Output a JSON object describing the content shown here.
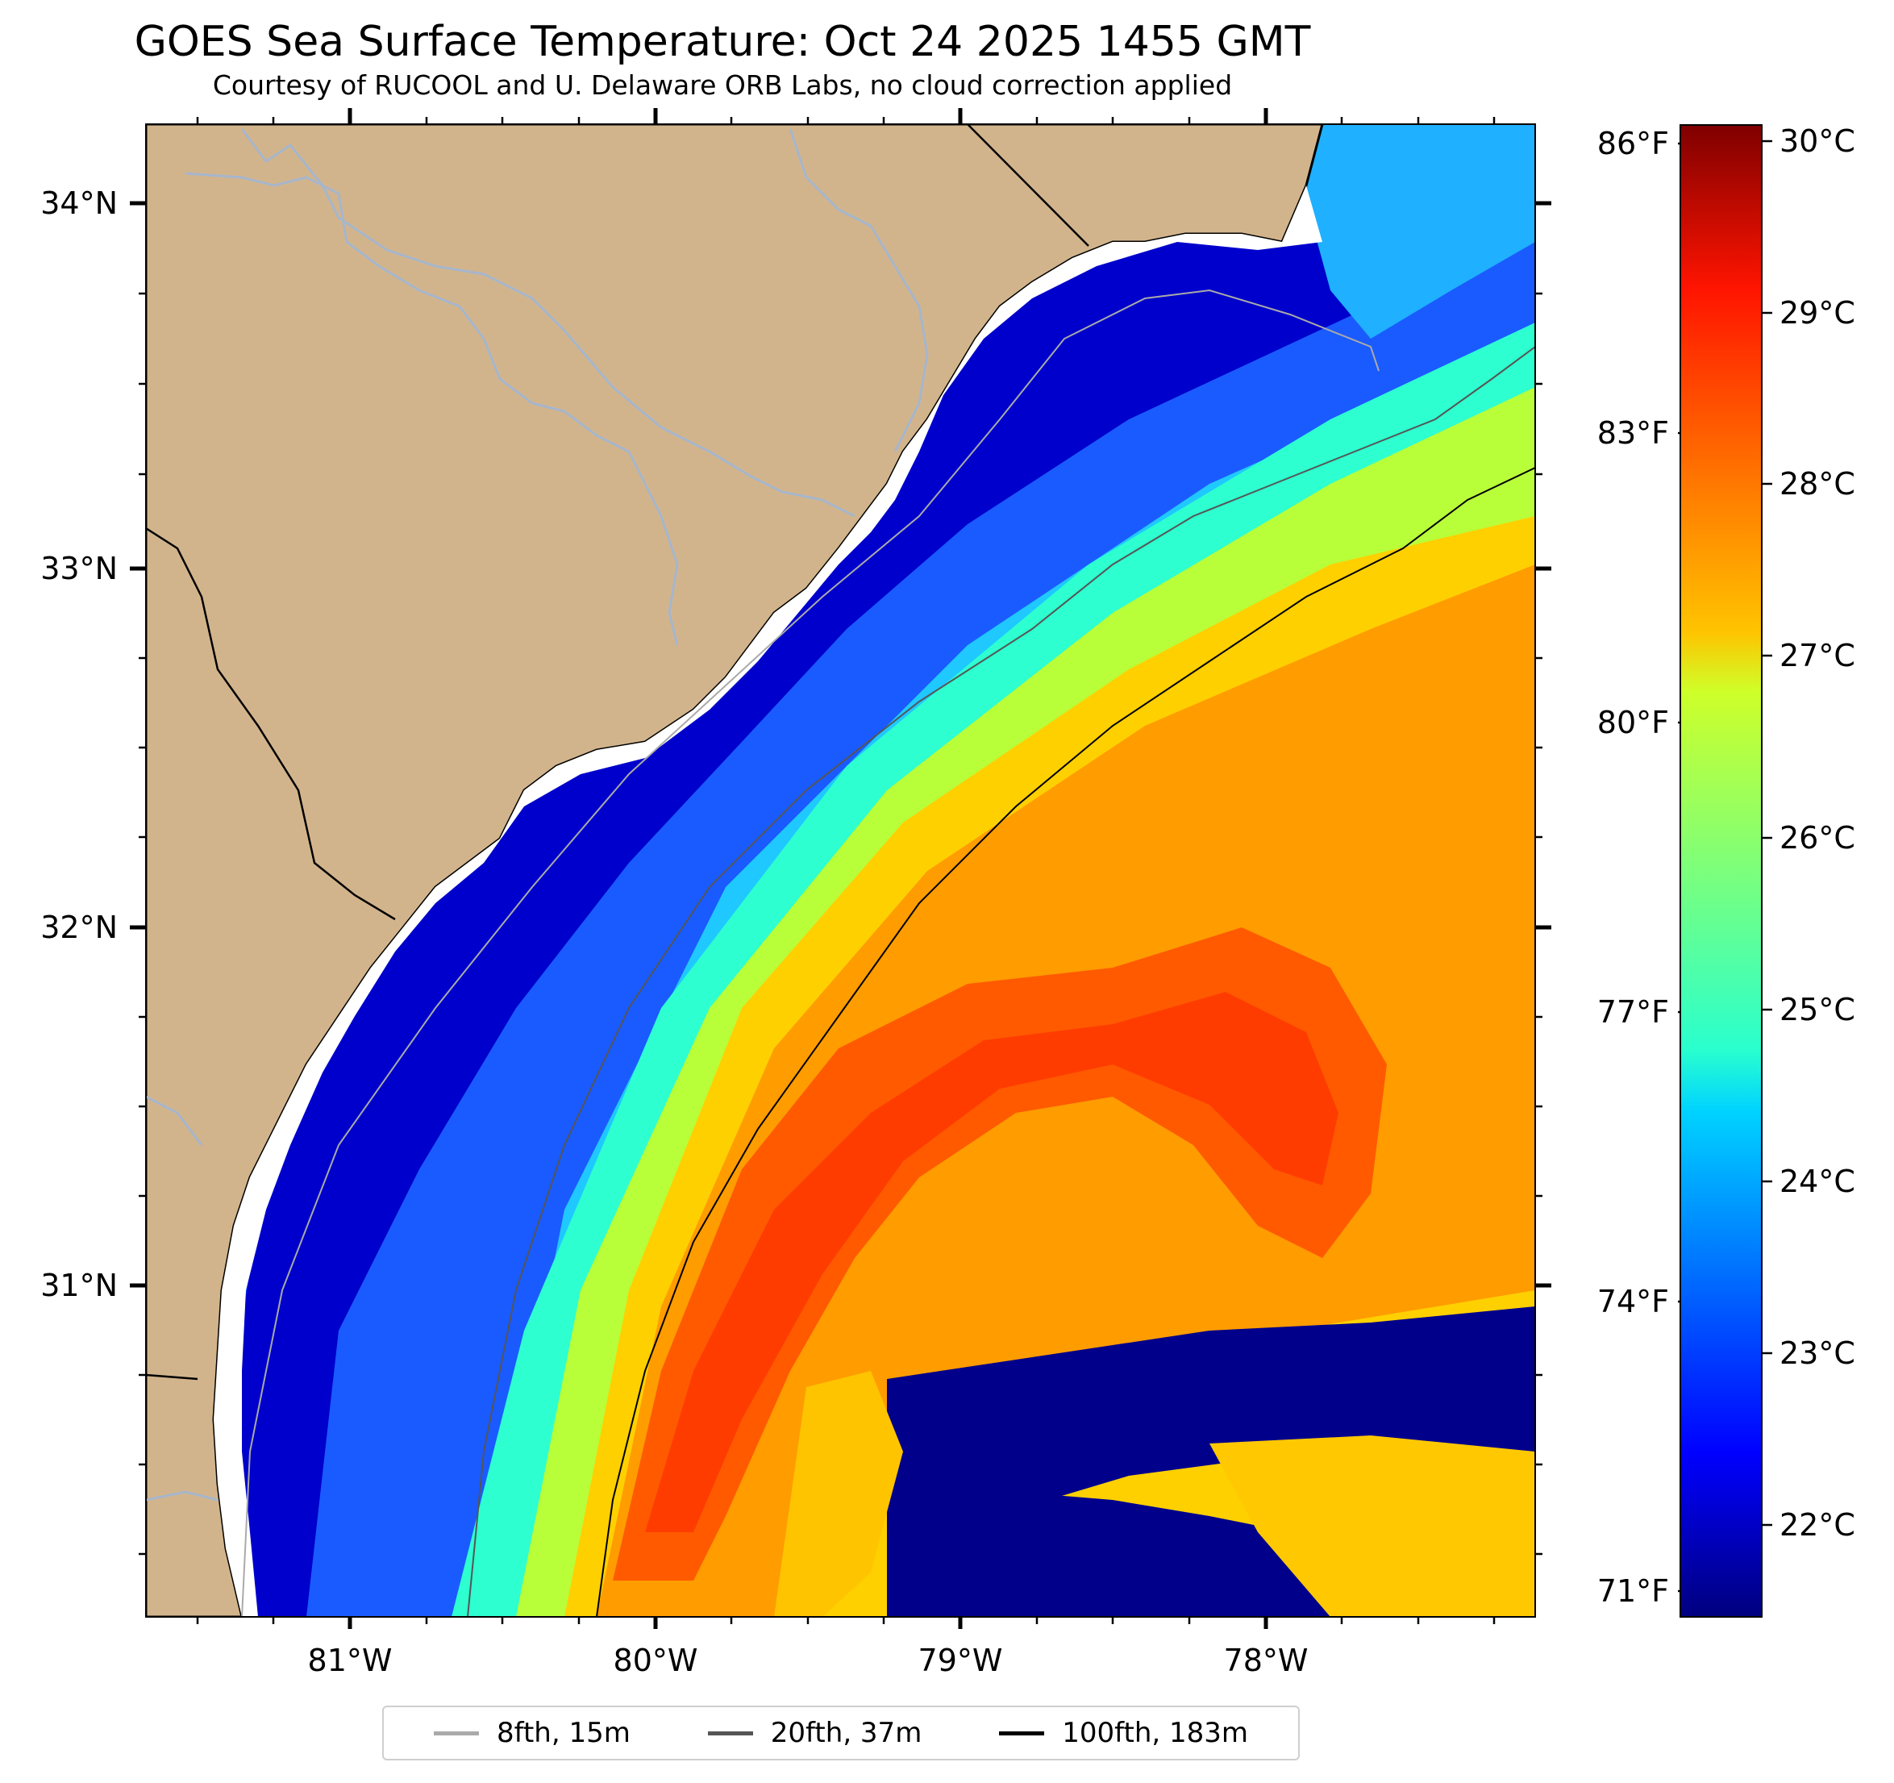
{
  "title": "GOES Sea Surface Temperature: Oct 24 2025 1455 GMT",
  "subtitle": "Courtesy of RUCOOL and U. Delaware ORB Labs, no cloud correction applied",
  "map": {
    "lon_ticks": [
      "81°W",
      "80°W",
      "79°W",
      "78°W"
    ],
    "lat_ticks": [
      "34°N",
      "33°N",
      "32°N",
      "31°N"
    ],
    "fahrenheit_ticks": [
      "86°F",
      "83°F",
      "80°F",
      "77°F",
      "74°F",
      "71°F"
    ],
    "colors": {
      "land": "#d2b48c",
      "river": "#a6b6cc",
      "coast": "#000000",
      "cloud_mask": "#00008b"
    }
  },
  "colorbar": {
    "ticks": [
      "30°C",
      "29°C",
      "28°C",
      "27°C",
      "26°C",
      "25°C",
      "24°C",
      "23°C",
      "22°C"
    ],
    "range_c": [
      21.5,
      30.2
    ],
    "colormap": "jet"
  },
  "legend": {
    "items": [
      {
        "label": "8fth, 15m",
        "color": "#aaaaaa"
      },
      {
        "label": "20fth, 37m",
        "color": "#555555"
      },
      {
        "label": "100fth, 183m",
        "color": "#000000"
      }
    ]
  }
}
